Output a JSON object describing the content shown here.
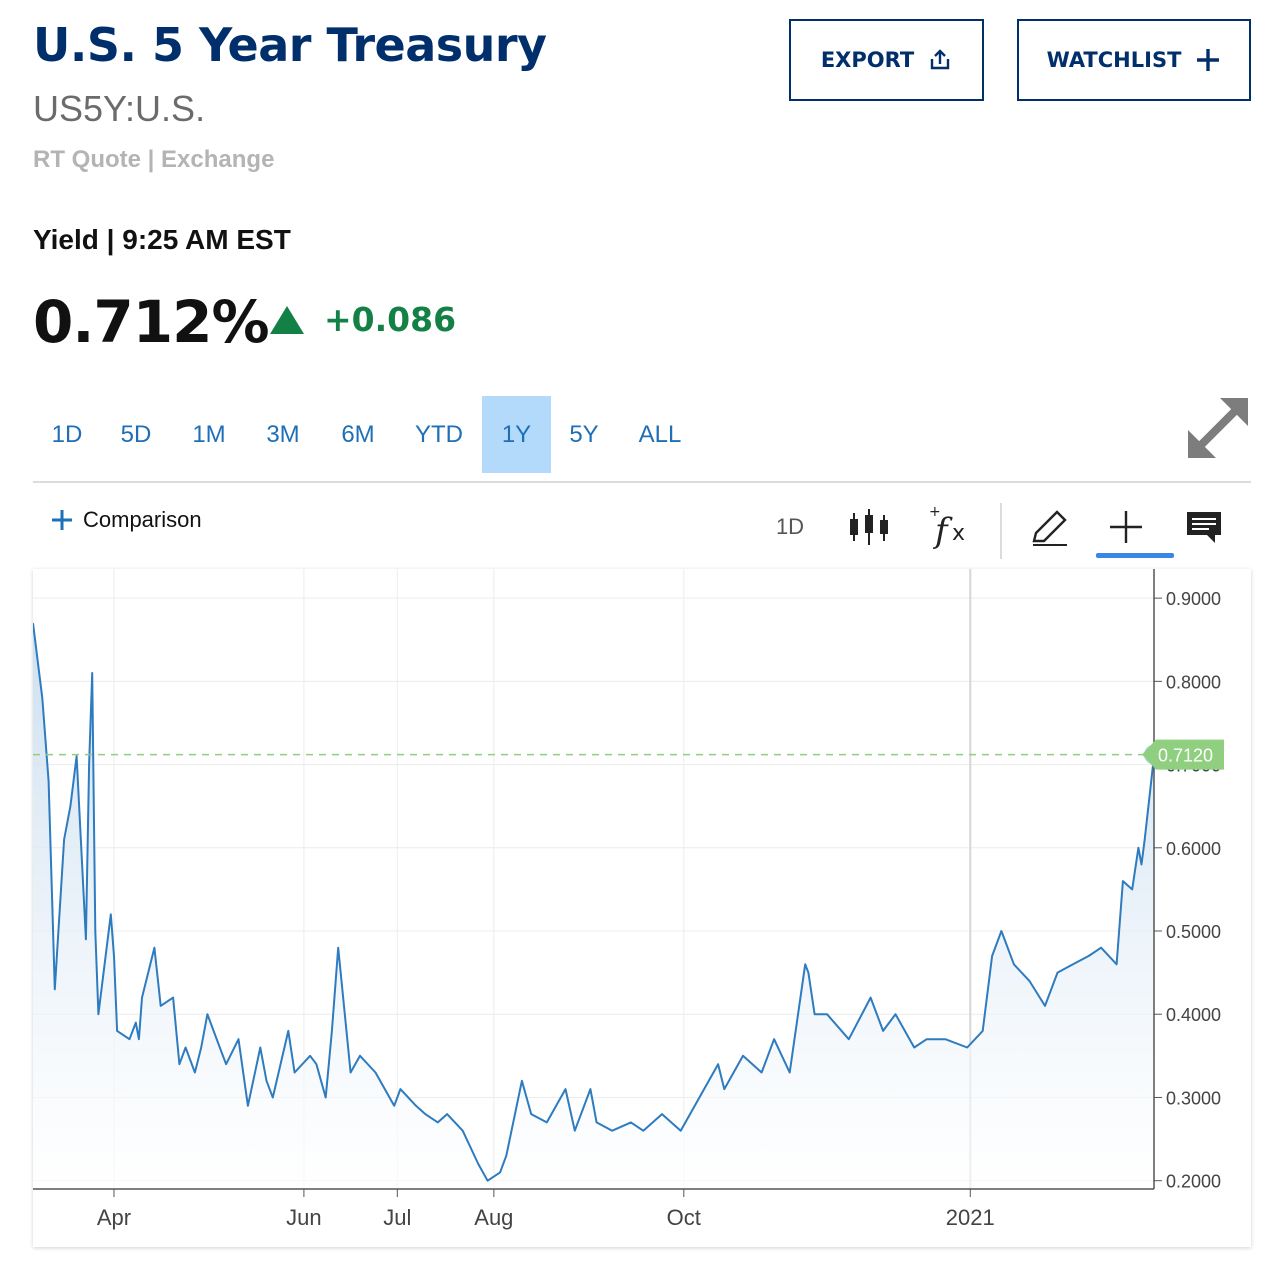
{
  "header": {
    "title": "U.S. 5 Year Treasury",
    "symbol": "US5Y:U.S.",
    "quote_type": "RT Quote | Exchange",
    "export_label": "EXPORT",
    "export_icon": "share-upload-icon",
    "watchlist_label": "WATCHLIST",
    "watchlist_icon": "plus-icon"
  },
  "quote": {
    "label": "Yield | 9:25 AM EST",
    "last": "0.712%",
    "change": "+0.086",
    "direction_icon": "triangle-up-icon",
    "change_color": "#138046"
  },
  "ranges": {
    "tabs": [
      "1D",
      "5D",
      "1M",
      "3M",
      "6M",
      "YTD",
      "1Y",
      "5Y",
      "ALL"
    ],
    "active": "1Y",
    "expand_icon": "expand-arrows-icon"
  },
  "toolbar": {
    "comparison_label": "Comparison",
    "comparison_icon": "plus-icon",
    "interval_label": "1D",
    "icons": [
      "candlestick-icon",
      "function-fx-icon",
      "pencil-icon",
      "crosshair-icon",
      "comment-icon"
    ]
  },
  "colors": {
    "brand": "#002f6c",
    "link": "#1e6fb8",
    "line": "#2e7bbf",
    "current_marker": "#8fcf7f",
    "active_tab": "#b3d9fb"
  },
  "chart_data": {
    "type": "area",
    "title": "",
    "xlabel": "",
    "ylabel": "",
    "x_ticks": [
      "Apr",
      "Jun",
      "Jul",
      "Aug",
      "Oct",
      "2021"
    ],
    "y_ticks": [
      "0.9000",
      "0.8000",
      "0.7000",
      "0.6000",
      "0.5000",
      "0.4000",
      "0.3000",
      "0.2000"
    ],
    "ylim": [
      0.19,
      0.935
    ],
    "x_range": [
      "2020-03-06",
      "2021-03-01"
    ],
    "current_value": 0.712,
    "current_label": "0.7120",
    "grid": true,
    "series": [
      {
        "x": [
          "2020-03-06",
          "2020-03-09",
          "2020-03-11",
          "2020-03-13",
          "2020-03-16",
          "2020-03-18",
          "2020-03-20",
          "2020-03-23",
          "2020-03-24",
          "2020-03-25",
          "2020-03-26",
          "2020-03-27",
          "2020-03-30",
          "2020-03-31",
          "2020-04-01",
          "2020-04-02",
          "2020-04-06",
          "2020-04-08",
          "2020-04-09",
          "2020-04-10",
          "2020-04-14",
          "2020-04-16",
          "2020-04-20",
          "2020-04-22",
          "2020-04-24",
          "2020-04-27",
          "2020-04-29",
          "2020-05-01",
          "2020-05-05",
          "2020-05-07",
          "2020-05-11",
          "2020-05-14",
          "2020-05-18",
          "2020-05-20",
          "2020-05-22",
          "2020-05-27",
          "2020-05-29",
          "2020-06-03",
          "2020-06-05",
          "2020-06-08",
          "2020-06-10",
          "2020-06-12",
          "2020-06-16",
          "2020-06-19",
          "2020-06-24",
          "2020-06-30",
          "2020-07-02",
          "2020-07-07",
          "2020-07-10",
          "2020-07-14",
          "2020-07-17",
          "2020-07-22",
          "2020-07-27",
          "2020-07-30",
          "2020-08-03",
          "2020-08-05",
          "2020-08-10",
          "2020-08-13",
          "2020-08-18",
          "2020-08-24",
          "2020-08-27",
          "2020-09-01",
          "2020-09-03",
          "2020-09-08",
          "2020-09-14",
          "2020-09-18",
          "2020-09-24",
          "2020-09-30",
          "2020-10-06",
          "2020-10-12",
          "2020-10-14",
          "2020-10-20",
          "2020-10-26",
          "2020-10-30",
          "2020-11-04",
          "2020-11-09",
          "2020-11-10",
          "2020-11-12",
          "2020-11-16",
          "2020-11-23",
          "2020-11-30",
          "2020-12-04",
          "2020-12-08",
          "2020-12-14",
          "2020-12-18",
          "2020-12-24",
          "2020-12-31",
          "2021-01-05",
          "2021-01-08",
          "2021-01-11",
          "2021-01-15",
          "2021-01-20",
          "2021-01-25",
          "2021-01-29",
          "2021-02-03",
          "2021-02-08",
          "2021-02-12",
          "2021-02-17",
          "2021-02-19",
          "2021-02-22",
          "2021-02-24",
          "2021-02-25",
          "2021-02-26",
          "2021-03-01"
        ],
        "values": [
          0.87,
          0.78,
          0.68,
          0.43,
          0.61,
          0.65,
          0.71,
          0.49,
          0.7,
          0.81,
          0.5,
          0.4,
          0.49,
          0.52,
          0.47,
          0.38,
          0.37,
          0.39,
          0.37,
          0.42,
          0.48,
          0.41,
          0.42,
          0.34,
          0.36,
          0.33,
          0.36,
          0.4,
          0.36,
          0.34,
          0.37,
          0.29,
          0.36,
          0.32,
          0.3,
          0.38,
          0.33,
          0.35,
          0.34,
          0.3,
          0.38,
          0.48,
          0.33,
          0.35,
          0.33,
          0.29,
          0.31,
          0.29,
          0.28,
          0.27,
          0.28,
          0.26,
          0.22,
          0.2,
          0.21,
          0.23,
          0.32,
          0.28,
          0.27,
          0.31,
          0.26,
          0.31,
          0.27,
          0.26,
          0.27,
          0.26,
          0.28,
          0.26,
          0.3,
          0.34,
          0.31,
          0.35,
          0.33,
          0.37,
          0.33,
          0.46,
          0.45,
          0.4,
          0.4,
          0.37,
          0.42,
          0.38,
          0.4,
          0.36,
          0.37,
          0.37,
          0.36,
          0.38,
          0.47,
          0.5,
          0.46,
          0.44,
          0.41,
          0.45,
          0.46,
          0.47,
          0.48,
          0.46,
          0.56,
          0.55,
          0.6,
          0.58,
          0.61,
          0.71
        ]
      }
    ]
  }
}
